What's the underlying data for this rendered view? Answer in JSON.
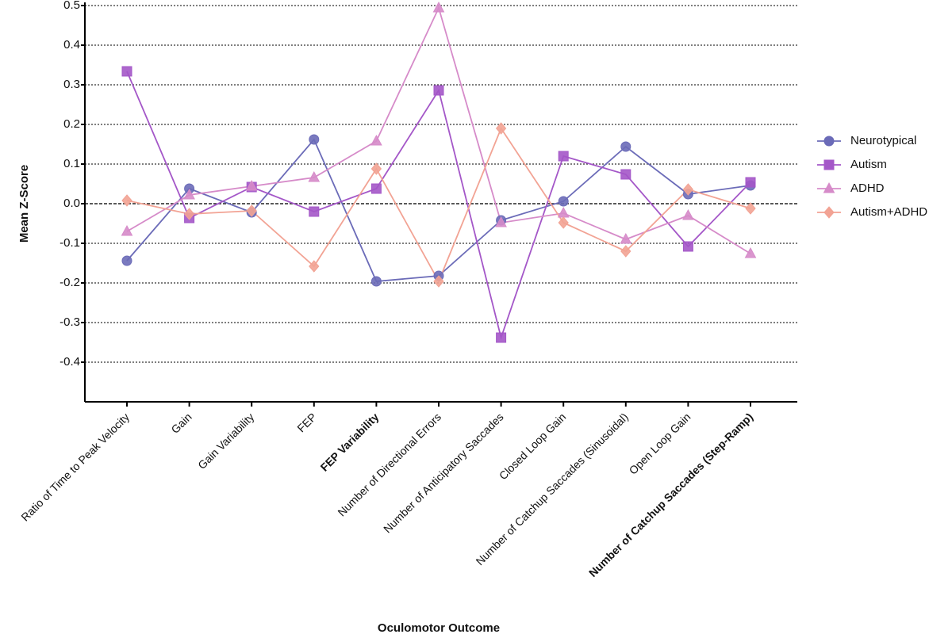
{
  "chart_data": {
    "type": "line",
    "x_label": "Oculomotor Outcome",
    "y_label": "Mean Z-Score",
    "categories": [
      "Ratio of Time to Peak Velocity",
      "Gain",
      "Gain Variability",
      "FEP",
      "FEP Variability",
      "Number of Directional Errors",
      "Number of Anticipatory Saccades",
      "Closed Loop Gain",
      "Number of Catchup Saccades (Sinusoidal)",
      "Open Loop Gain",
      "Number of Catchup Saccades (Step-Ramp)"
    ],
    "bold_categories": [
      4,
      10
    ],
    "series": [
      {
        "name": "Neurotypical",
        "color": "#6b6bb8",
        "marker": "circle",
        "values": [
          -0.144,
          0.038,
          -0.022,
          0.162,
          -0.196,
          -0.182,
          -0.042,
          0.006,
          0.144,
          0.024,
          0.046
        ]
      },
      {
        "name": "Autism",
        "color": "#a457c8",
        "marker": "square",
        "values": [
          0.334,
          -0.036,
          0.042,
          -0.02,
          0.038,
          0.286,
          -0.338,
          0.12,
          0.074,
          -0.108,
          0.054
        ]
      },
      {
        "name": "ADHD",
        "color": "#d68bc9",
        "marker": "triangle",
        "values": [
          -0.07,
          0.022,
          0.044,
          0.066,
          0.158,
          0.494,
          -0.048,
          -0.024,
          -0.09,
          -0.03,
          -0.126
        ]
      },
      {
        "name": "Autism+ADHD",
        "color": "#f2a394",
        "marker": "diamond",
        "values": [
          0.008,
          -0.026,
          -0.018,
          -0.158,
          0.088,
          -0.196,
          0.19,
          -0.048,
          -0.12,
          0.036,
          -0.012
        ]
      }
    ],
    "ylim": [
      -0.5,
      0.5
    ],
    "yticks": [
      -0.4,
      -0.3,
      -0.2,
      -0.1,
      {
        "value": 0,
        "label": "0.0"
      },
      0.1,
      0.2,
      0.3,
      0.4,
      0.5
    ],
    "grid": true,
    "legend": "right"
  }
}
